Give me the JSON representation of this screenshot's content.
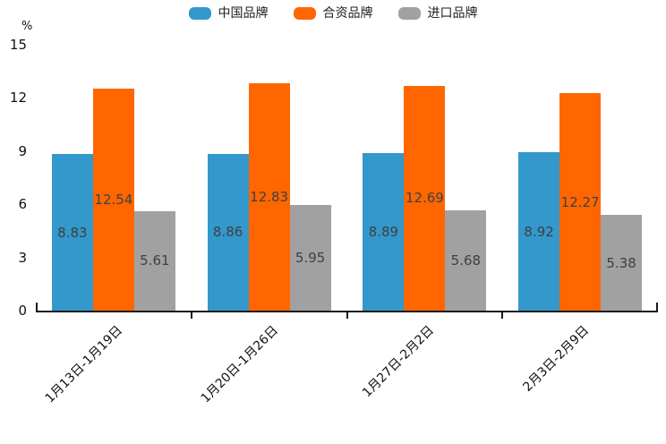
{
  "chart_data": {
    "type": "bar",
    "title": "",
    "unit_label": "%",
    "categories": [
      "1月13日-1月19日",
      "1月20日-1月26日",
      "1月27日-2月2日",
      "2月3日-2月9日"
    ],
    "series": [
      {
        "name": "中国品牌",
        "color": "#3398CB",
        "values": [
          8.83,
          8.86,
          8.89,
          8.92
        ]
      },
      {
        "name": "合资品牌",
        "color": "#FF6600",
        "values": [
          12.54,
          12.83,
          12.69,
          12.27
        ]
      },
      {
        "name": "进口品牌",
        "color": "#A1A1A1",
        "values": [
          5.61,
          5.95,
          5.68,
          5.38
        ]
      }
    ],
    "y_axis": {
      "min": 0,
      "max": 15,
      "ticks": [
        0,
        3,
        6,
        9,
        12,
        15
      ]
    },
    "legend_position": "top",
    "grid": false,
    "value_labels": "inside-center",
    "axis_color": "#1a1a1a"
  }
}
